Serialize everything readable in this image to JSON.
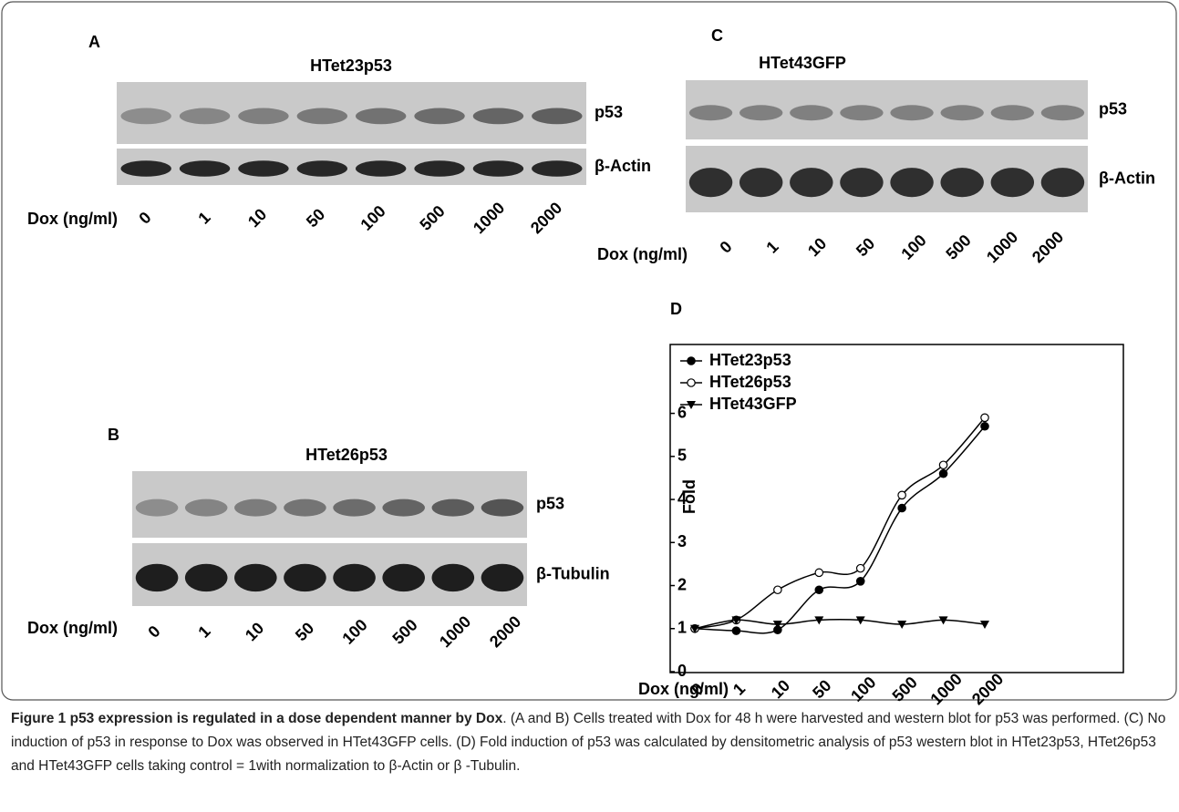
{
  "panels": [
    {
      "letter": "A",
      "title": "HTet23p53",
      "bands": [
        "p53",
        "β-Actin"
      ],
      "x_label": "Dox (ng/ml)",
      "doses": [
        "0",
        "1",
        "10",
        "50",
        "100",
        "500",
        "1000",
        "2000"
      ]
    },
    {
      "letter": "B",
      "title": "HTet26p53",
      "bands": [
        "p53",
        "β-Tubulin"
      ],
      "x_label": "Dox (ng/ml)",
      "doses": [
        "0",
        "1",
        "10",
        "50",
        "100",
        "500",
        "1000",
        "2000"
      ]
    },
    {
      "letter": "C",
      "title": "HTet43GFP",
      "bands": [
        "p53",
        "β-Actin"
      ],
      "x_label": "Dox (ng/ml)",
      "doses": [
        "0",
        "1",
        "10",
        "50",
        "100",
        "500",
        "1000",
        "2000"
      ]
    }
  ],
  "chart_data": {
    "type": "line",
    "panel_label": "D",
    "y_label": "Fold",
    "x_label": "Dox (ng/ml)",
    "categories": [
      "0",
      "1",
      "10",
      "50",
      "100",
      "500",
      "1000",
      "2000"
    ],
    "ylim": [
      0,
      7.6
    ],
    "yticks": [
      0,
      1,
      2,
      3,
      4,
      5,
      6
    ],
    "series": [
      {
        "name": "HTet23p53",
        "color": "#000000",
        "marker": "circle-filled",
        "values": [
          1,
          0.95,
          0.97,
          1.9,
          2.1,
          3.8,
          4.6,
          5.7
        ]
      },
      {
        "name": "HTet26p53",
        "color": "#000000",
        "marker": "circle-open",
        "values": [
          1,
          1.2,
          1.9,
          2.3,
          2.4,
          4.1,
          4.8,
          5.9
        ]
      },
      {
        "name": "HTet43GFP",
        "color": "#000000",
        "marker": "triangle-down",
        "values": [
          1,
          1.2,
          1.1,
          1.2,
          1.2,
          1.1,
          1.2,
          1.1
        ]
      }
    ]
  },
  "caption": {
    "title": "Figure 1 p53 expression is regulated in a dose dependent manner by Dox",
    "text": ". (A and B) Cells treated with Dox for 48 h were harvested and western blot for p53 was performed. (C) No induction of p53 in response to Dox was observed in HTet43GFP cells. (D) Fold induction of p53 was calculated by densitometric analysis of p53 western blot in HTet23p53, HTet26p53 and HTet43GFP cells taking control = 1with normalization to β-Actin or β -Tubulin."
  }
}
